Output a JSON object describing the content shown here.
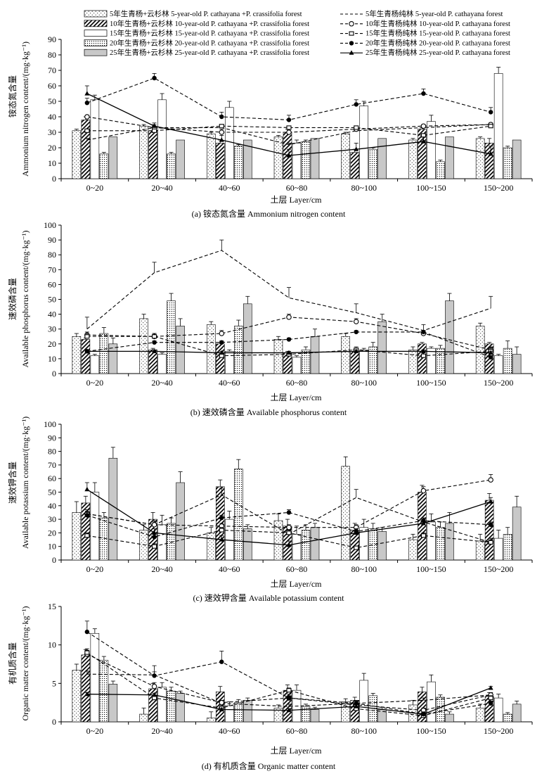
{
  "legend": [
    {
      "label": "5年生青杨+云杉林 5-year-old P. cathayana +P. crassifolia forest",
      "kind": "bar",
      "pattern": "dots-sparse"
    },
    {
      "label": "5年生青杨纯林 5-year-old P. cathayana forest",
      "kind": "line",
      "dash": "4,3",
      "marker": "none"
    },
    {
      "label": "10年生青杨+云杉林 10-year-old P. cathayana +P. crassifolia forest",
      "kind": "bar",
      "pattern": "hatch"
    },
    {
      "label": "10年生青杨纯林 10-year-old P. cathayana forest",
      "kind": "line",
      "dash": "4,3",
      "marker": "circle-open"
    },
    {
      "label": "15年生青杨+云杉林 15-year-old P. cathayana +P. crassifolia forest",
      "kind": "bar",
      "pattern": "white"
    },
    {
      "label": "15年生青杨纯林 15-year-old P. cathayana forest",
      "kind": "line",
      "dash": "4,3",
      "marker": "square-open"
    },
    {
      "label": "20年生青杨+云杉林 20-year-old P. cathayana +P. crassifolia forest",
      "kind": "bar",
      "pattern": "dots-dense"
    },
    {
      "label": "20年生青杨纯林 20-year-old P. cathayana forest",
      "kind": "line",
      "dash": "4,3",
      "marker": "circle-filled"
    },
    {
      "label": "25年生青杨+云杉林 25-year-old P. cathayana +P. crassifolia forest",
      "kind": "bar",
      "pattern": "gray"
    },
    {
      "label": "25年生青杨纯林 25-year-old P. cathayana forest",
      "kind": "line",
      "dash": "none",
      "marker": "triangle"
    }
  ],
  "chart_data": [
    {
      "panel": "a",
      "type": "bar",
      "caption": "(a) 铵态氮含量 Ammonium nitrogen content",
      "ylabel_cn": "铵态氮含量",
      "ylabel_en": "Ammonium nitrogen content/(mg·kg⁻¹)",
      "xlabel": "土层 Layer/cm",
      "categories": [
        "0~20",
        "20~40",
        "40~60",
        "60~80",
        "80~100",
        "100~150",
        "150~200"
      ],
      "ylim": [
        0,
        90
      ],
      "yticks": [
        0,
        10,
        20,
        30,
        40,
        50,
        60,
        70,
        80,
        90
      ],
      "bars": [
        {
          "values": [
            31,
            34,
            29,
            27,
            29,
            25,
            26
          ],
          "errors": [
            1,
            1,
            1,
            1,
            1,
            1,
            1
          ]
        },
        {
          "values": [
            38,
            31,
            23,
            30,
            17,
            32,
            23
          ],
          "errors": [
            2,
            2,
            2,
            2,
            2,
            2,
            3
          ]
        },
        {
          "values": [
            51,
            51,
            46,
            23,
            47,
            37,
            68
          ],
          "errors": [
            3,
            4,
            4,
            2,
            3,
            4,
            4
          ]
        },
        {
          "values": [
            16,
            16,
            21,
            24,
            19,
            11,
            20
          ],
          "errors": [
            1,
            1,
            1,
            1,
            1,
            1,
            1
          ]
        },
        {
          "values": [
            27,
            25,
            25,
            26,
            26,
            27,
            25
          ],
          "errors": [
            0,
            0,
            0,
            0,
            0,
            0,
            0
          ]
        }
      ],
      "lines": [
        {
          "values": [
            25,
            33,
            33,
            22,
            31,
            33,
            35
          ],
          "errors": [
            1,
            1,
            1,
            1,
            1,
            1,
            1
          ]
        },
        {
          "values": [
            40,
            33,
            30,
            30,
            32,
            34,
            35
          ],
          "errors": [
            1,
            2,
            2,
            1,
            1,
            1,
            1
          ]
        },
        {
          "values": [
            31,
            31,
            34,
            33,
            33,
            28,
            34
          ],
          "errors": [
            1,
            1,
            1,
            1,
            1,
            1,
            1
          ]
        },
        {
          "values": [
            49,
            65,
            40,
            38,
            48,
            55,
            43
          ],
          "errors": [
            3,
            3,
            3,
            3,
            3,
            3,
            3
          ]
        },
        {
          "values": [
            55,
            34,
            25,
            15,
            19,
            24,
            16
          ],
          "errors": [
            5,
            2,
            3,
            4,
            4,
            3,
            5
          ]
        }
      ]
    },
    {
      "panel": "b",
      "type": "bar",
      "caption": "(b) 速效磷含量 Available phosphorus content",
      "ylabel_cn": "速效磷含量",
      "ylabel_en": "Available phosphorus content/(mg·kg⁻¹)",
      "xlabel": "土层 Layer/cm",
      "categories": [
        "0~20",
        "20~40",
        "40~60",
        "60~80",
        "80~100",
        "100~150",
        "150~200"
      ],
      "ylim": [
        0,
        100
      ],
      "yticks": [
        0,
        10,
        20,
        30,
        40,
        50,
        60,
        70,
        80,
        90,
        100
      ],
      "bars": [
        {
          "values": [
            25,
            37,
            33,
            23,
            25,
            16,
            32
          ],
          "errors": [
            2,
            3,
            2,
            2,
            2,
            2,
            2
          ]
        },
        {
          "values": [
            23,
            16,
            20,
            14,
            15,
            20,
            20
          ],
          "errors": [
            1,
            1,
            1,
            1,
            1,
            1,
            1
          ]
        },
        {
          "values": [
            12,
            13,
            15,
            11,
            16,
            17,
            12
          ],
          "errors": [
            1,
            1,
            1,
            1,
            1,
            1,
            1
          ]
        },
        {
          "values": [
            27,
            49,
            32,
            16,
            18,
            17,
            17
          ],
          "errors": [
            4,
            5,
            4,
            2,
            3,
            2,
            5
          ]
        },
        {
          "values": [
            20,
            32,
            47,
            25,
            35,
            49,
            13
          ],
          "errors": [
            4,
            5,
            5,
            5,
            5,
            5,
            5
          ]
        }
      ],
      "lines": [
        {
          "values": [
            30,
            68,
            83,
            51,
            41,
            29,
            44
          ],
          "errors": [
            8,
            7,
            7,
            7,
            6,
            4,
            8
          ]
        },
        {
          "values": [
            26,
            25,
            27,
            38,
            35,
            27,
            16
          ],
          "errors": [
            2,
            2,
            2,
            2,
            2,
            2,
            2
          ]
        },
        {
          "values": [
            25,
            25,
            12,
            13,
            16,
            12,
            15
          ],
          "errors": [
            2,
            2,
            2,
            2,
            2,
            2,
            2
          ]
        },
        {
          "values": [
            15,
            21,
            21,
            23,
            28,
            28,
            11
          ],
          "errors": [
            1,
            1,
            1,
            1,
            1,
            1,
            1
          ]
        },
        {
          "values": [
            15,
            15,
            14,
            14,
            15,
            15,
            14
          ],
          "errors": [
            1,
            1,
            1,
            1,
            1,
            1,
            1
          ]
        }
      ]
    },
    {
      "panel": "c",
      "type": "bar",
      "caption": "(c) 速效钾含量 Available potassium content",
      "ylabel_cn": "速效钾含量",
      "ylabel_en": "Available potassium content/(mg·kg⁻¹)",
      "xlabel": "土层 Layer/cm",
      "categories": [
        "0~20",
        "20~40",
        "40~60",
        "60~80",
        "80~100",
        "100~150",
        "150~200"
      ],
      "ylim": [
        0,
        100
      ],
      "yticks": [
        0,
        10,
        20,
        30,
        40,
        50,
        60,
        70,
        80,
        90,
        100
      ],
      "bars": [
        {
          "values": [
            35,
            22,
            20,
            29,
            69,
            15,
            14
          ],
          "errors": [
            8,
            4,
            4,
            5,
            7,
            4,
            5
          ]
        },
        {
          "values": [
            42,
            30,
            54,
            25,
            22,
            50,
            44
          ],
          "errors": [
            5,
            5,
            5,
            5,
            5,
            5,
            5
          ]
        },
        {
          "values": [
            50,
            26,
            30,
            19,
            24,
            28,
            16
          ],
          "errors": [
            7,
            7,
            6,
            6,
            6,
            6,
            6
          ]
        },
        {
          "values": [
            31,
            27,
            67,
            22,
            23,
            24,
            19
          ],
          "errors": [
            4,
            4,
            7,
            4,
            4,
            4,
            5
          ]
        },
        {
          "values": [
            75,
            57,
            23,
            24,
            21,
            27,
            39
          ],
          "errors": [
            8,
            8,
            3,
            3,
            3,
            8,
            8
          ]
        }
      ],
      "lines": [
        {
          "values": [
            34,
            26,
            48,
            19,
            46,
            28,
            13
          ],
          "errors": [
            3,
            3,
            5,
            3,
            6,
            3,
            3
          ]
        },
        {
          "values": [
            34,
            26,
            25,
            24,
            24,
            51,
            59
          ],
          "errors": [
            2,
            2,
            2,
            2,
            2,
            3,
            4
          ]
        },
        {
          "values": [
            18,
            10,
            22,
            20,
            9,
            18,
            13
          ],
          "errors": [
            2,
            2,
            2,
            2,
            1,
            2,
            2
          ]
        },
        {
          "values": [
            33,
            17,
            31,
            35,
            21,
            29,
            26
          ],
          "errors": [
            2,
            2,
            2,
            2,
            2,
            2,
            2
          ]
        },
        {
          "values": [
            52,
            20,
            15,
            11,
            20,
            27,
            43
          ],
          "errors": [
            5,
            3,
            3,
            3,
            3,
            3,
            3
          ]
        }
      ]
    },
    {
      "panel": "d",
      "type": "bar",
      "caption": "(d) 有机质含量 Organic matter content",
      "ylabel_cn": "有机质含量",
      "ylabel_en": "Organic matter content/(mg·kg⁻¹)",
      "xlabel": "土层 Layer/cm",
      "categories": [
        "0~20",
        "20~40",
        "40~60",
        "60~80",
        "80~100",
        "100~150",
        "150~200"
      ],
      "ylim": [
        0,
        15
      ],
      "yticks": [
        0,
        5,
        10,
        15
      ],
      "bars": [
        {
          "values": [
            6.7,
            1.0,
            0.5,
            1.8,
            2.6,
            2.2,
            1.8
          ],
          "errors": [
            0.8,
            0.8,
            0.8,
            0.4,
            0.4,
            0.6,
            0.5
          ]
        },
        {
          "values": [
            8.7,
            4.3,
            3.9,
            4.1,
            2.8,
            3.9,
            3.3
          ],
          "errors": [
            0.7,
            0.7,
            0.7,
            0.7,
            0.4,
            0.6,
            0.5
          ]
        },
        {
          "values": [
            11.5,
            4.5,
            2.1,
            4.1,
            5.4,
            5.2,
            3.1
          ],
          "errors": [
            0.6,
            0.6,
            0.5,
            0.7,
            0.9,
            0.9,
            0.5
          ]
        },
        {
          "values": [
            8.0,
            4.0,
            2.5,
            2.0,
            3.4,
            3.2,
            1.0
          ],
          "errors": [
            0.5,
            0.5,
            0.4,
            0.3,
            0.3,
            0.3,
            0.2
          ]
        },
        {
          "values": [
            4.9,
            3.7,
            2.8,
            1.6,
            1.6,
            1.0,
            2.3
          ],
          "errors": [
            0.4,
            0.3,
            0.3,
            0.3,
            0.3,
            0.3,
            0.4
          ]
        }
      ],
      "lines": [
        {
          "values": [
            6.2,
            6.1,
            2.4,
            2.0,
            2.4,
            2.8,
            3.5
          ],
          "errors": [
            0.4,
            0.4,
            0.3,
            0.3,
            0.3,
            0.3,
            0.3
          ]
        },
        {
          "values": [
            8.8,
            4.6,
            2.5,
            3.1,
            2.2,
            1.5,
            3.5
          ],
          "errors": [
            0.5,
            0.5,
            0.3,
            0.3,
            0.3,
            0.3,
            0.3
          ]
        },
        {
          "values": [
            9.0,
            3.1,
            1.8,
            4.1,
            1.7,
            0.8,
            3.1
          ],
          "errors": [
            0.5,
            0.4,
            0.3,
            0.3,
            0.3,
            0.3,
            0.3
          ]
        },
        {
          "values": [
            11.7,
            6.0,
            7.8,
            3.1,
            2.4,
            1.0,
            2.4
          ],
          "errors": [
            1.4,
            1.3,
            1.4,
            0.5,
            0.4,
            0.3,
            0.3
          ]
        },
        {
          "values": [
            3.6,
            3.5,
            1.6,
            1.5,
            2.0,
            1.0,
            4.4
          ],
          "errors": [
            0.2,
            0.2,
            0.2,
            0.2,
            0.2,
            0.2,
            0.2
          ]
        }
      ]
    }
  ]
}
